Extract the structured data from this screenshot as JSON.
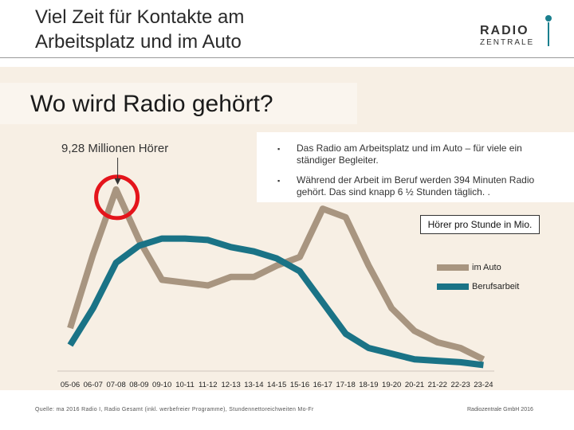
{
  "header": {
    "title_line1": "Viel Zeit für Kontakte am",
    "title_line2": "Arbeitsplatz und im Auto",
    "logo_top": "RADIO",
    "logo_bottom": "ZENTRALE"
  },
  "panel": {
    "title": "Wo wird Radio gehört?",
    "peak_label": "9,28 Millionen Hörer",
    "bullets": [
      "Das Radio am Arbeitsplatz und im Auto – für viele ein ständiger Begleiter.",
      "Während der Arbeit im Beruf werden 394 Minuten Radio gehört. Das sind knapp 6 ½ Stunden täglich. ."
    ],
    "bullet_symbol": "▪"
  },
  "colors": {
    "auto": "#a89580",
    "beruf": "#1a7386",
    "circle": "#e4141b",
    "panel_bg": "#f7efe4"
  },
  "chart_data": {
    "type": "line",
    "title": "",
    "legend_title": "Hörer pro Stunde in Mio.",
    "categories": [
      "05-06",
      "06-07",
      "07-08",
      "08-09",
      "09-10",
      "10-11",
      "11-12",
      "12-13",
      "13-14",
      "14-15",
      "15-16",
      "16-17",
      "17-18",
      "18-19",
      "19-20",
      "20-21",
      "21-22",
      "22-23",
      "23-24"
    ],
    "series": [
      {
        "name": "im Auto",
        "values": [
          4.4,
          7.0,
          9.28,
          7.5,
          6.1,
          6.0,
          5.9,
          6.2,
          6.2,
          6.6,
          6.9,
          8.6,
          8.3,
          6.6,
          5.1,
          4.3,
          3.9,
          3.7,
          3.3
        ]
      },
      {
        "name": "Berufsarbeit",
        "values": [
          3.8,
          5.1,
          6.7,
          7.3,
          7.55,
          7.55,
          7.5,
          7.25,
          7.1,
          6.85,
          6.4,
          5.3,
          4.2,
          3.7,
          3.5,
          3.3,
          3.25,
          3.2,
          3.1
        ]
      }
    ],
    "ylim": [
      3.0,
      9.5
    ],
    "highlight": {
      "category": "07-08",
      "series": "im Auto",
      "value": 9.28
    }
  },
  "footer": {
    "source": "Quelle: ma 2016 Radio I, Radio Gesamt (inkl. werbefreier Programme), Stundennettoreichweiten Mo-Fr",
    "company": "Radiozentrale GmbH 2016"
  }
}
